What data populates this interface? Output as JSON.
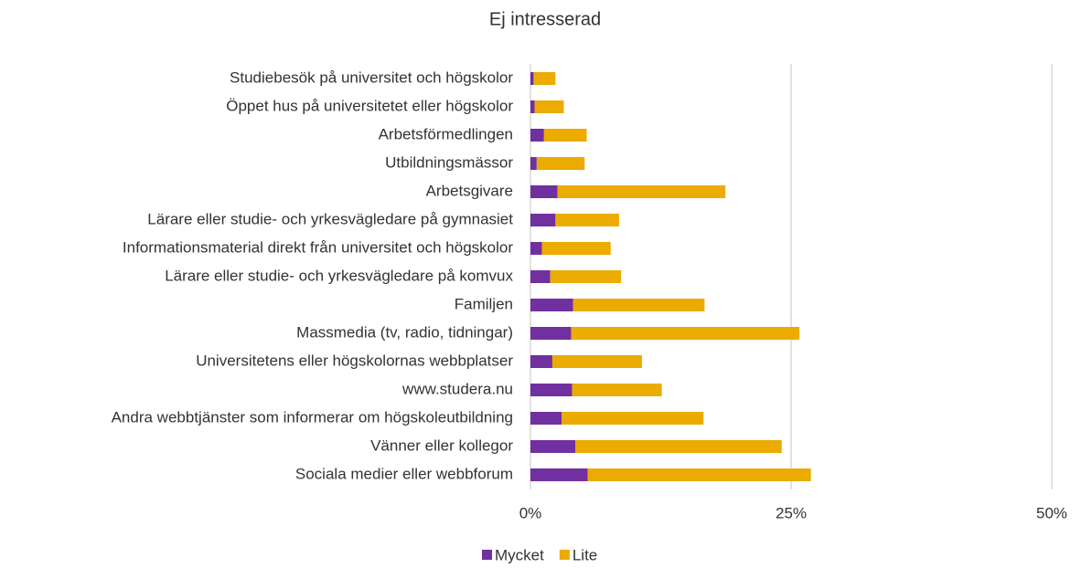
{
  "chart_data": {
    "type": "stacked_bar_horizontal",
    "title": "Ej intresserad",
    "categories": [
      "Studiebesök på universitet och högskolor",
      "Öppet hus på universitetet eller högskolor",
      "Arbetsförmedlingen",
      "Utbildningsmässor",
      "Arbetsgivare",
      "Lärare eller studie- och yrkesvägledare på gymnasiet",
      "Informationsmaterial direkt från universitet och högskolor",
      "Lärare eller studie- och yrkesvägledare på komvux",
      "Familjen",
      "Massmedia (tv, radio, tidningar)",
      "Universitetens eller högskolornas webbplatser",
      "www.studera.nu",
      "Andra webbtjänster som informerar om högskoleutbildning",
      "Vänner eller kollegor",
      "Sociala medier eller webbforum"
    ],
    "series": [
      {
        "name": "Mycket",
        "color": "#7030a0",
        "values": [
          0.3,
          0.4,
          1.3,
          0.6,
          2.6,
          2.4,
          1.1,
          1.9,
          4.1,
          3.9,
          2.1,
          4.0,
          3.0,
          4.3,
          5.5
        ]
      },
      {
        "name": "Lite",
        "color": "#ebab00",
        "values": [
          2.1,
          2.8,
          4.1,
          4.6,
          16.1,
          6.1,
          6.6,
          6.8,
          12.6,
          21.9,
          8.6,
          8.6,
          13.6,
          19.8,
          21.4
        ]
      }
    ],
    "xlim": [
      0,
      50
    ],
    "xticks": [
      {
        "value": 0,
        "label": "0%"
      },
      {
        "value": 25,
        "label": "25%"
      },
      {
        "value": 50,
        "label": "50%"
      }
    ],
    "grid": true,
    "legend": "bottom"
  }
}
